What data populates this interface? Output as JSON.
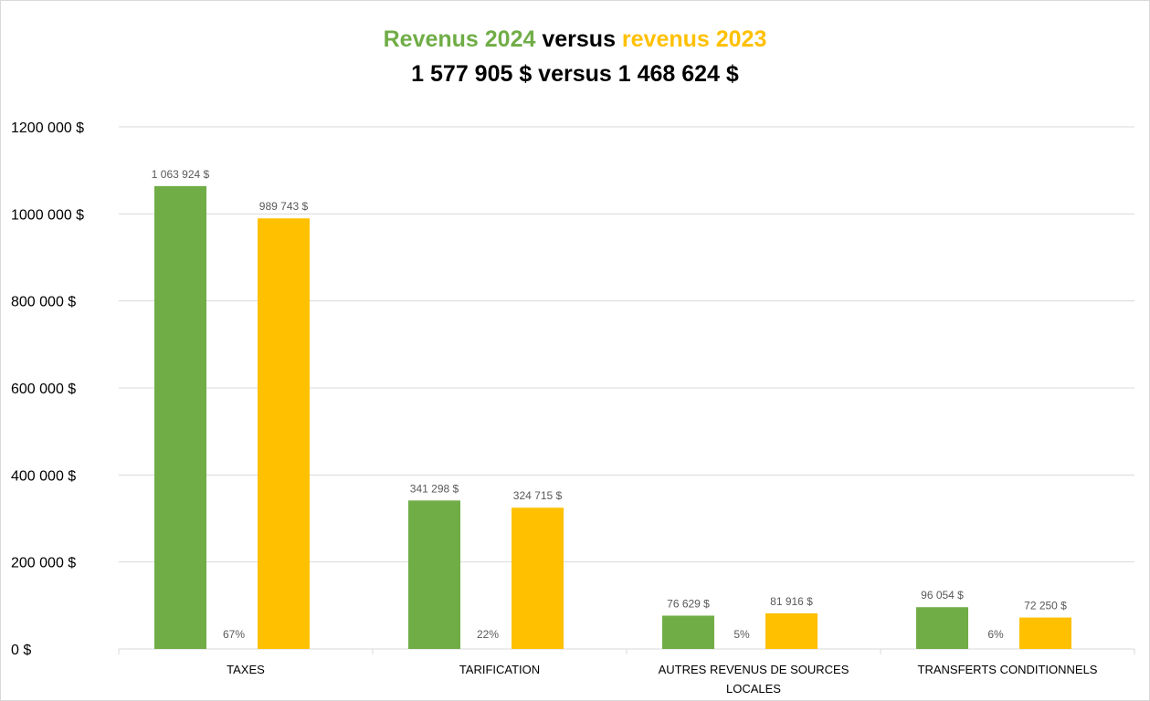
{
  "title": {
    "part1": "Revenus 2024",
    "part2": " versus ",
    "part3": "revenus 2023",
    "subtitle": "1 577 905 $ versus 1 468 624 $"
  },
  "colors": {
    "series2024": "#70ad47",
    "series2023": "#ffc000",
    "grid": "#d9d9d9",
    "text": "#595959"
  },
  "chart_data": {
    "type": "bar",
    "title": "Revenus 2024 versus revenus 2023",
    "subtitle": "1 577 905 $ versus 1 468 624 $",
    "categories": [
      "TAXES",
      "TARIFICATION",
      "AUTRES REVENUS DE SOURCES LOCALES",
      "TRANSFERTS CONDITIONNELS"
    ],
    "category_lines": [
      [
        "TAXES"
      ],
      [
        "TARIFICATION"
      ],
      [
        "AUTRES REVENUS DE SOURCES",
        "LOCALES"
      ],
      [
        "TRANSFERTS CONDITIONNELS"
      ]
    ],
    "series": [
      {
        "values": [
          1063924,
          341298,
          76629,
          96054
        ],
        "labels": [
          "1 063 924 $",
          "341 298 $",
          "76 629 $",
          "96 054 $"
        ]
      },
      {
        "values": [
          989743,
          324715,
          81916,
          72250
        ],
        "labels": [
          "989 743 $",
          "324 715 $",
          "81 916 $",
          "72 250 $"
        ]
      }
    ],
    "percent_labels": [
      "67%",
      "22%",
      "5%",
      "6%"
    ],
    "ylim": [
      0,
      1200000
    ],
    "yticks": [
      0,
      200000,
      400000,
      600000,
      800000,
      1000000,
      1200000
    ],
    "ytick_labels": [
      "0 $",
      "200 000 $",
      "400 000 $",
      "600 000 $",
      "800 000 $",
      "1000 000 $",
      "1200 000 $"
    ],
    "grid": true,
    "legend": "none"
  }
}
